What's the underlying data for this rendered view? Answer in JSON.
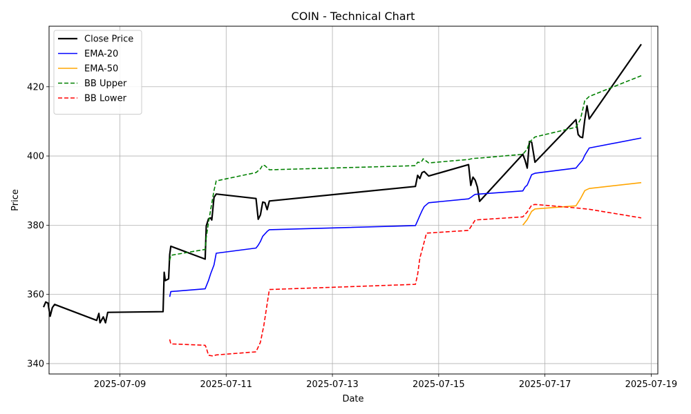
{
  "chart_data": {
    "type": "line",
    "title": "COIN - Technical Chart",
    "xlabel": "Date",
    "ylabel": "Price",
    "x_ticks": [
      "2025-07-09",
      "2025-07-11",
      "2025-07-13",
      "2025-07-15",
      "2025-07-17",
      "2025-07-19"
    ],
    "y_ticks": [
      340,
      360,
      380,
      400,
      420
    ],
    "xlim": [
      "2025-07-07 16:00",
      "2025-07-19 03:00"
    ],
    "ylim": [
      337,
      437.5
    ],
    "grid": true,
    "legend_position": "top-left",
    "series": [
      {
        "name": "Close Price",
        "color": "#000000",
        "style": "solid",
        "width": 2.2,
        "points": [
          [
            "2025-07-07 13:30",
            356.3
          ],
          [
            "2025-07-07 14:30",
            357.8
          ],
          [
            "2025-07-07 15:30",
            357.5
          ],
          [
            "2025-07-07 16:30",
            353.7
          ],
          [
            "2025-07-07 17:30",
            356.2
          ],
          [
            "2025-07-07 18:30",
            357.1
          ],
          [
            "2025-07-08 13:30",
            352.5
          ],
          [
            "2025-07-08 14:30",
            354.5
          ],
          [
            "2025-07-08 15:00",
            351.8
          ],
          [
            "2025-07-08 16:30",
            353.5
          ],
          [
            "2025-07-08 17:30",
            351.8
          ],
          [
            "2025-07-08 18:30",
            354.8
          ],
          [
            "2025-07-09 19:30",
            355.0
          ],
          [
            "2025-07-09 20:00",
            366.4
          ],
          [
            "2025-07-09 20:30",
            364.0
          ],
          [
            "2025-07-09 22:00",
            364.5
          ],
          [
            "2025-07-09 22:30",
            371.5
          ],
          [
            "2025-07-09 23:00",
            373.9
          ],
          [
            "2025-07-10 14:30",
            370.2
          ],
          [
            "2025-07-10 15:00",
            379.8
          ],
          [
            "2025-07-10 16:00",
            381.8
          ],
          [
            "2025-07-10 17:00",
            382.1
          ],
          [
            "2025-07-10 17:30",
            381.5
          ],
          [
            "2025-07-10 18:30",
            388.0
          ],
          [
            "2025-07-10 19:30",
            389.0
          ],
          [
            "2025-07-11 13:30",
            387.7
          ],
          [
            "2025-07-11 14:30",
            381.7
          ],
          [
            "2025-07-11 15:30",
            383.0
          ],
          [
            "2025-07-11 16:30",
            386.7
          ],
          [
            "2025-07-11 17:30",
            386.5
          ],
          [
            "2025-07-11 18:30",
            384.5
          ],
          [
            "2025-07-11 19:30",
            387.0
          ],
          [
            "2025-07-14 13:30",
            391.2
          ],
          [
            "2025-07-14 14:30",
            394.4
          ],
          [
            "2025-07-14 15:30",
            393.5
          ],
          [
            "2025-07-14 16:30",
            395.2
          ],
          [
            "2025-07-14 17:30",
            395.5
          ],
          [
            "2025-07-14 19:30",
            394.2
          ],
          [
            "2025-07-15 13:30",
            397.5
          ],
          [
            "2025-07-15 14:30",
            391.5
          ],
          [
            "2025-07-15 15:30",
            393.9
          ],
          [
            "2025-07-15 16:30",
            393.0
          ],
          [
            "2025-07-15 17:30",
            391.0
          ],
          [
            "2025-07-15 18:30",
            386.9
          ],
          [
            "2025-07-16 14:00",
            400.5
          ],
          [
            "2025-07-16 15:00",
            398.8
          ],
          [
            "2025-07-16 16:00",
            396.5
          ],
          [
            "2025-07-16 17:00",
            404.2
          ],
          [
            "2025-07-16 18:00",
            404.0
          ],
          [
            "2025-07-16 19:30",
            398.2
          ],
          [
            "2025-07-17 14:00",
            410.5
          ],
          [
            "2025-07-17 15:00",
            406.2
          ],
          [
            "2025-07-17 16:00",
            405.5
          ],
          [
            "2025-07-17 17:00",
            405.3
          ],
          [
            "2025-07-17 18:00",
            410.5
          ],
          [
            "2025-07-17 19:00",
            414.5
          ],
          [
            "2025-07-17 20:00",
            410.7
          ],
          [
            "2025-07-18 19:30",
            432.3
          ]
        ]
      },
      {
        "name": "EMA-20",
        "color": "#0000ff",
        "style": "solid",
        "width": 1.6,
        "points": [
          [
            "2025-07-09 22:30",
            359.3
          ],
          [
            "2025-07-09 23:00",
            360.8
          ],
          [
            "2025-07-10 14:30",
            361.6
          ],
          [
            "2025-07-10 15:00",
            362.4
          ],
          [
            "2025-07-10 16:00",
            364.0
          ],
          [
            "2025-07-10 17:00",
            366.0
          ],
          [
            "2025-07-10 18:30",
            368.5
          ],
          [
            "2025-07-10 19:30",
            371.9
          ],
          [
            "2025-07-11 13:30",
            373.4
          ],
          [
            "2025-07-11 14:30",
            374.2
          ],
          [
            "2025-07-11 15:30",
            375.3
          ],
          [
            "2025-07-11 16:30",
            376.8
          ],
          [
            "2025-07-11 18:30",
            378.2
          ],
          [
            "2025-07-11 19:30",
            378.7
          ],
          [
            "2025-07-14 13:30",
            379.9
          ],
          [
            "2025-07-14 14:30",
            381.3
          ],
          [
            "2025-07-14 15:30",
            382.8
          ],
          [
            "2025-07-14 16:30",
            384.2
          ],
          [
            "2025-07-14 17:30",
            385.4
          ],
          [
            "2025-07-14 19:30",
            386.5
          ],
          [
            "2025-07-15 13:30",
            387.6
          ],
          [
            "2025-07-15 14:30",
            388.0
          ],
          [
            "2025-07-15 15:30",
            388.5
          ],
          [
            "2025-07-15 16:30",
            388.9
          ],
          [
            "2025-07-15 18:30",
            389.0
          ],
          [
            "2025-07-16 14:00",
            389.9
          ],
          [
            "2025-07-16 15:00",
            391.0
          ],
          [
            "2025-07-16 16:00",
            391.6
          ],
          [
            "2025-07-16 17:00",
            393.1
          ],
          [
            "2025-07-16 18:00",
            394.6
          ],
          [
            "2025-07-16 19:30",
            395.0
          ],
          [
            "2025-07-17 14:00",
            396.5
          ],
          [
            "2025-07-17 15:00",
            397.3
          ],
          [
            "2025-07-17 17:00",
            398.8
          ],
          [
            "2025-07-17 18:00",
            400.2
          ],
          [
            "2025-07-17 20:00",
            402.3
          ],
          [
            "2025-07-18 19:30",
            405.2
          ]
        ]
      },
      {
        "name": "EMA-50",
        "color": "#ffa500",
        "style": "solid",
        "width": 1.6,
        "points": [
          [
            "2025-07-16 14:00",
            380.0
          ],
          [
            "2025-07-16 16:00",
            381.6
          ],
          [
            "2025-07-16 18:00",
            384.0
          ],
          [
            "2025-07-16 19:30",
            384.7
          ],
          [
            "2025-07-17 14:00",
            385.6
          ],
          [
            "2025-07-17 16:00",
            387.6
          ],
          [
            "2025-07-17 18:00",
            390.0
          ],
          [
            "2025-07-17 20:00",
            390.6
          ],
          [
            "2025-07-18 19:30",
            392.3
          ]
        ]
      },
      {
        "name": "BB Upper",
        "color": "#008000",
        "style": "dashed",
        "width": 1.6,
        "points": [
          [
            "2025-07-09 22:30",
            369.8
          ],
          [
            "2025-07-09 23:00",
            371.3
          ],
          [
            "2025-07-10 14:30",
            373.0
          ],
          [
            "2025-07-10 15:00",
            376.5
          ],
          [
            "2025-07-10 16:00",
            380.7
          ],
          [
            "2025-07-10 17:00",
            384.5
          ],
          [
            "2025-07-10 18:30",
            390.0
          ],
          [
            "2025-07-10 19:30",
            392.8
          ],
          [
            "2025-07-11 13:30",
            395.2
          ],
          [
            "2025-07-11 15:30",
            396.3
          ],
          [
            "2025-07-11 16:30",
            397.4
          ],
          [
            "2025-07-11 17:30",
            397.2
          ],
          [
            "2025-07-11 19:30",
            396.0
          ],
          [
            "2025-07-14 13:30",
            397.2
          ],
          [
            "2025-07-14 14:30",
            398.2
          ],
          [
            "2025-07-14 15:30",
            398.1
          ],
          [
            "2025-07-14 16:30",
            398.6
          ],
          [
            "2025-07-14 17:00",
            399.2
          ],
          [
            "2025-07-14 19:30",
            398.0
          ],
          [
            "2025-07-15 13:30",
            399.0
          ],
          [
            "2025-07-15 15:30",
            399.3
          ],
          [
            "2025-07-15 18:30",
            399.4
          ],
          [
            "2025-07-16 14:00",
            400.5
          ],
          [
            "2025-07-16 16:00",
            402.0
          ],
          [
            "2025-07-16 17:00",
            404.0
          ],
          [
            "2025-07-16 19:30",
            405.5
          ],
          [
            "2025-07-17 14:00",
            408.3
          ],
          [
            "2025-07-17 16:00",
            410.5
          ],
          [
            "2025-07-17 18:00",
            416.0
          ],
          [
            "2025-07-17 20:00",
            417.2
          ],
          [
            "2025-07-18 19:30",
            423.2
          ]
        ]
      },
      {
        "name": "BB Lower",
        "color": "#ff0000",
        "style": "dashed",
        "width": 1.6,
        "points": [
          [
            "2025-07-09 22:30",
            347.0
          ],
          [
            "2025-07-09 23:00",
            345.7
          ],
          [
            "2025-07-10 14:30",
            345.3
          ],
          [
            "2025-07-10 15:00",
            344.6
          ],
          [
            "2025-07-10 16:00",
            342.4
          ],
          [
            "2025-07-10 18:00",
            342.2
          ],
          [
            "2025-07-10 19:30",
            342.5
          ],
          [
            "2025-07-11 13:30",
            343.4
          ],
          [
            "2025-07-11 15:30",
            346.2
          ],
          [
            "2025-07-11 17:00",
            351.0
          ],
          [
            "2025-07-11 19:30",
            361.4
          ],
          [
            "2025-07-14 13:30",
            362.9
          ],
          [
            "2025-07-14 14:30",
            365.8
          ],
          [
            "2025-07-14 15:30",
            370.5
          ],
          [
            "2025-07-14 17:00",
            374.0
          ],
          [
            "2025-07-14 18:30",
            377.7
          ],
          [
            "2025-07-15 13:30",
            378.5
          ],
          [
            "2025-07-15 15:30",
            380.5
          ],
          [
            "2025-07-15 16:30",
            381.5
          ],
          [
            "2025-07-16 14:00",
            382.4
          ],
          [
            "2025-07-16 16:00",
            383.8
          ],
          [
            "2025-07-16 18:00",
            385.8
          ],
          [
            "2025-07-16 19:30",
            386.0
          ],
          [
            "2025-07-17 14:00",
            385.0
          ],
          [
            "2025-07-17 20:00",
            384.6
          ],
          [
            "2025-07-18 19:30",
            382.1
          ]
        ]
      }
    ]
  }
}
